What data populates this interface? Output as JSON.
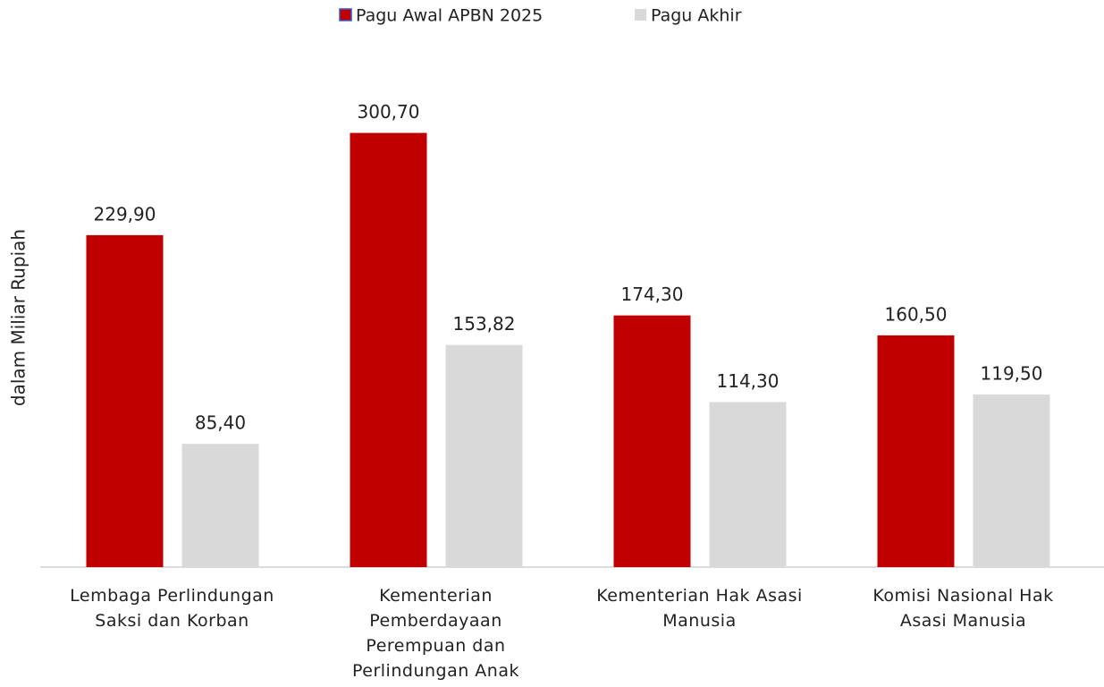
{
  "chart_data": {
    "type": "bar",
    "y_axis_label": "dalam Miliar Rupiah",
    "categories": [
      "Lembaga Perlindungan Saksi dan Korban",
      "Kementerian Pemberdayaan Perempuan dan Perlindungan Anak",
      "Kementerian Hak Asasi Manusia",
      "Komisi Nasional Hak Asasi Manusia"
    ],
    "series": [
      {
        "name": "Pagu Awal APBN 2025",
        "color": "#c00000",
        "values": [
          229.9,
          300.7,
          174.3,
          160.5
        ],
        "value_labels": [
          "229,90",
          "300,70",
          "174,30",
          "160,50"
        ]
      },
      {
        "name": "Pagu Akhir",
        "color": "#d9d9d9",
        "values": [
          85.4,
          153.82,
          114.3,
          119.5
        ],
        "value_labels": [
          "85,40",
          "153,82",
          "114,30",
          "119,50"
        ]
      }
    ],
    "ylim": [
      0,
      350
    ],
    "legend": "top"
  }
}
